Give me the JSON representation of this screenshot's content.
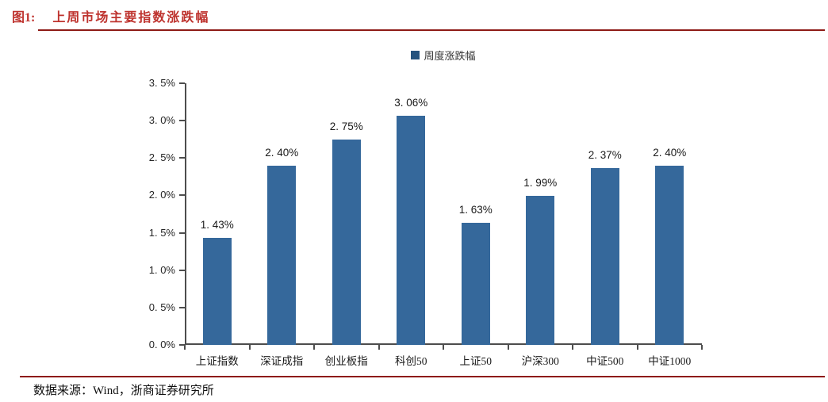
{
  "figure": {
    "label": "图1:",
    "title": "上周市场主要指数涨跌幅",
    "source": "数据来源：Wind，浙商证券研究所"
  },
  "colors": {
    "bar": "#35689B",
    "legend_marker": "#24527E",
    "title_red": "#BE332E",
    "rule_red": "#8E1B16",
    "axis": "#4d4d4d"
  },
  "chart_data": {
    "type": "bar",
    "title": "",
    "legend": [
      "周度涨跌幅"
    ],
    "legend_position": "top-center",
    "categories": [
      "上证指数",
      "深证成指",
      "创业板指",
      "科创50",
      "上证50",
      "沪深300",
      "中证500",
      "中证1000"
    ],
    "values": [
      1.43,
      2.4,
      2.75,
      3.06,
      1.63,
      1.99,
      2.37,
      2.4
    ],
    "data_labels": [
      "1. 43%",
      "2. 40%",
      "2. 75%",
      "3. 06%",
      "1. 63%",
      "1. 99%",
      "2. 37%",
      "2. 40%"
    ],
    "xlabel": "",
    "ylabel": "",
    "ylim": [
      0,
      3.5
    ],
    "ytick_step": 0.5,
    "ytick_labels": [
      "0. 0%",
      "0. 5%",
      "1. 0%",
      "1. 5%",
      "2. 0%",
      "2. 5%",
      "3. 0%",
      "3. 5%"
    ],
    "grid": false
  }
}
